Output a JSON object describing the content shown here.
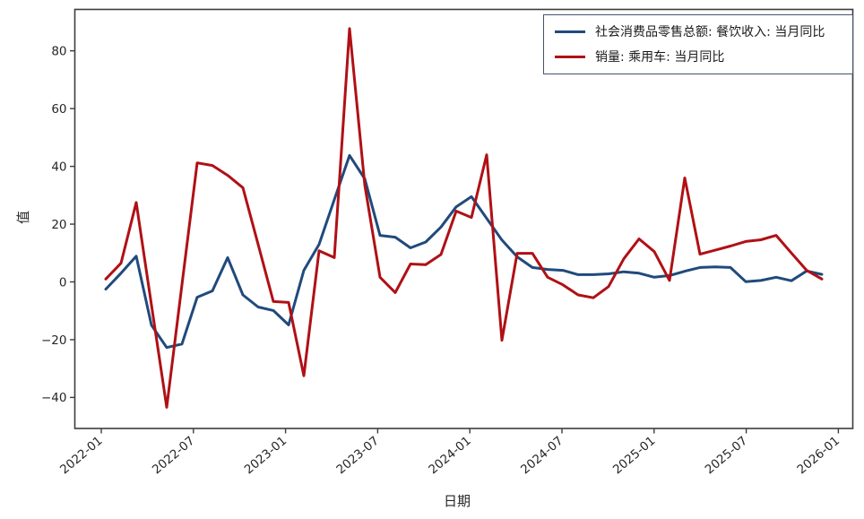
{
  "chart_data": {
    "type": "line",
    "x": [
      "2022-02",
      "2022-03",
      "2022-04",
      "2022-05",
      "2022-06",
      "2022-07",
      "2022-08",
      "2022-09",
      "2022-10",
      "2022-11",
      "2022-12",
      "2023-01",
      "2023-02",
      "2023-03",
      "2023-04",
      "2023-05",
      "2023-06",
      "2023-07",
      "2023-08",
      "2023-09",
      "2023-10",
      "2023-11",
      "2023-12",
      "2024-01",
      "2024-02",
      "2024-03",
      "2024-04",
      "2024-05",
      "2024-06",
      "2024-07",
      "2024-08",
      "2024-09",
      "2024-10",
      "2024-11",
      "2024-12",
      "2025-01",
      "2025-02",
      "2025-03",
      "2025-04",
      "2025-05",
      "2025-06",
      "2025-07",
      "2025-08",
      "2025-09",
      "2025-10",
      "2025-11",
      "2025-12",
      "2026-01"
    ],
    "series": [
      {
        "name": "社会消费品零售总额: 餐饮收入: 当月同比",
        "color": "#204a7c",
        "values": [
          -2.5,
          3.0,
          8.9,
          -15.0,
          -22.7,
          -21.5,
          -5.3,
          -3.1,
          8.4,
          -4.5,
          -8.7,
          -9.9,
          -14.9,
          4.0,
          13.0,
          28.5,
          43.8,
          35.7,
          16.1,
          15.5,
          11.8,
          13.8,
          19.0,
          26.0,
          29.5,
          22.0,
          14.5,
          8.7,
          5.0,
          4.3,
          4.0,
          2.5,
          2.5,
          2.8,
          3.5,
          3.0,
          1.6,
          2.2,
          3.7,
          5.0,
          5.2,
          5.0,
          0.1,
          0.5,
          1.6,
          0.4,
          3.8,
          2.6
        ]
      },
      {
        "name": "销量: 乘用车: 当月同比",
        "color": "#b01015",
        "values": [
          1.0,
          6.5,
          27.5,
          -8.0,
          -43.4,
          -1.0,
          41.2,
          40.3,
          36.9,
          32.6,
          13.0,
          -6.8,
          -7.1,
          -32.5,
          10.8,
          8.4,
          87.7,
          33.5,
          1.6,
          -3.7,
          6.2,
          6.0,
          9.5,
          24.5,
          22.3,
          44.0,
          -20.2,
          9.9,
          9.9,
          1.6,
          -1.0,
          -4.5,
          -5.5,
          -1.6,
          8.0,
          14.9,
          10.5,
          0.5,
          36.0,
          9.6,
          11.0,
          12.4,
          14.0,
          14.6,
          16.1,
          10.0,
          4.0,
          1.0
        ]
      }
    ],
    "title": "",
    "xlabel": "日期",
    "ylabel": "值",
    "ylim": [
      -50.5,
      94.5
    ],
    "yticks": [
      80,
      60,
      40,
      20,
      0,
      -20,
      -40
    ],
    "xtick_labels": [
      "2022-01",
      "2022-07",
      "2023-01",
      "2023-07",
      "2024-01",
      "2024-07",
      "2025-01",
      "2025-07",
      "2026-01"
    ],
    "grid": false,
    "legend_position": "upper right"
  },
  "style": {
    "background": "#ffffff",
    "spine_color": "#3c3c3c",
    "tick_label_color": "#262626",
    "legend_border_color": "#44546e",
    "line_width": 3
  }
}
